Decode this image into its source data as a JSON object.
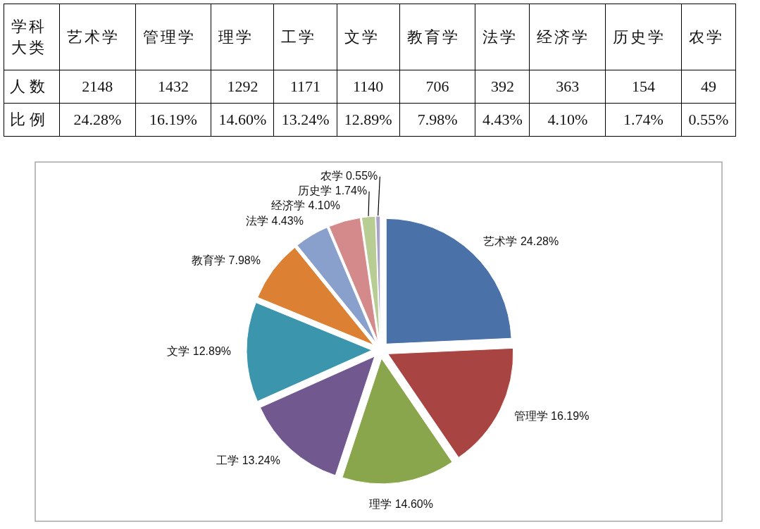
{
  "chart_data": [
    {
      "type": "other",
      "annotations": [
        "学科大类"
      ],
      "categories": [
        "艺术学",
        "管理学",
        "理学",
        "工学",
        "文学",
        "教育学",
        "法学",
        "经济学",
        "历史学",
        "农学"
      ],
      "data_labels": true,
      "series": [
        {
          "name": "人数",
          "values": [
            2148,
            1432,
            1292,
            1171,
            1140,
            706,
            392,
            363,
            154,
            49
          ]
        },
        {
          "name": "比例",
          "values": [
            24.28,
            16.19,
            14.6,
            13.24,
            12.89,
            7.98,
            4.43,
            4.1,
            1.74,
            0.55
          ],
          "value_labels": [
            "24.28%",
            "16.19%",
            "14.60%",
            "13.24%",
            "12.89%",
            "7.98%",
            "4.43%",
            "4.10%",
            "1.74%",
            "0.55%"
          ]
        }
      ]
    },
    {
      "type": "pie",
      "categories": [
        "艺术学",
        "管理学",
        "理学",
        "工学",
        "文学",
        "教育学",
        "法学",
        "经济学",
        "历史学",
        "农学"
      ],
      "values": [
        24.28,
        16.19,
        14.6,
        13.24,
        12.89,
        7.98,
        4.43,
        4.1,
        1.74,
        0.55
      ],
      "value_labels": [
        "24.28%",
        "16.19%",
        "14.60%",
        "13.24%",
        "12.89%",
        "7.98%",
        "4.43%",
        "4.10%",
        "1.74%",
        "0.55%"
      ],
      "colors": [
        "#4a72a8",
        "#a84442",
        "#8aa64c",
        "#71588f",
        "#3b95ad",
        "#dc8034",
        "#8aa0cc",
        "#d48a8b",
        "#b7cd93",
        "#a9a3c9"
      ]
    }
  ]
}
